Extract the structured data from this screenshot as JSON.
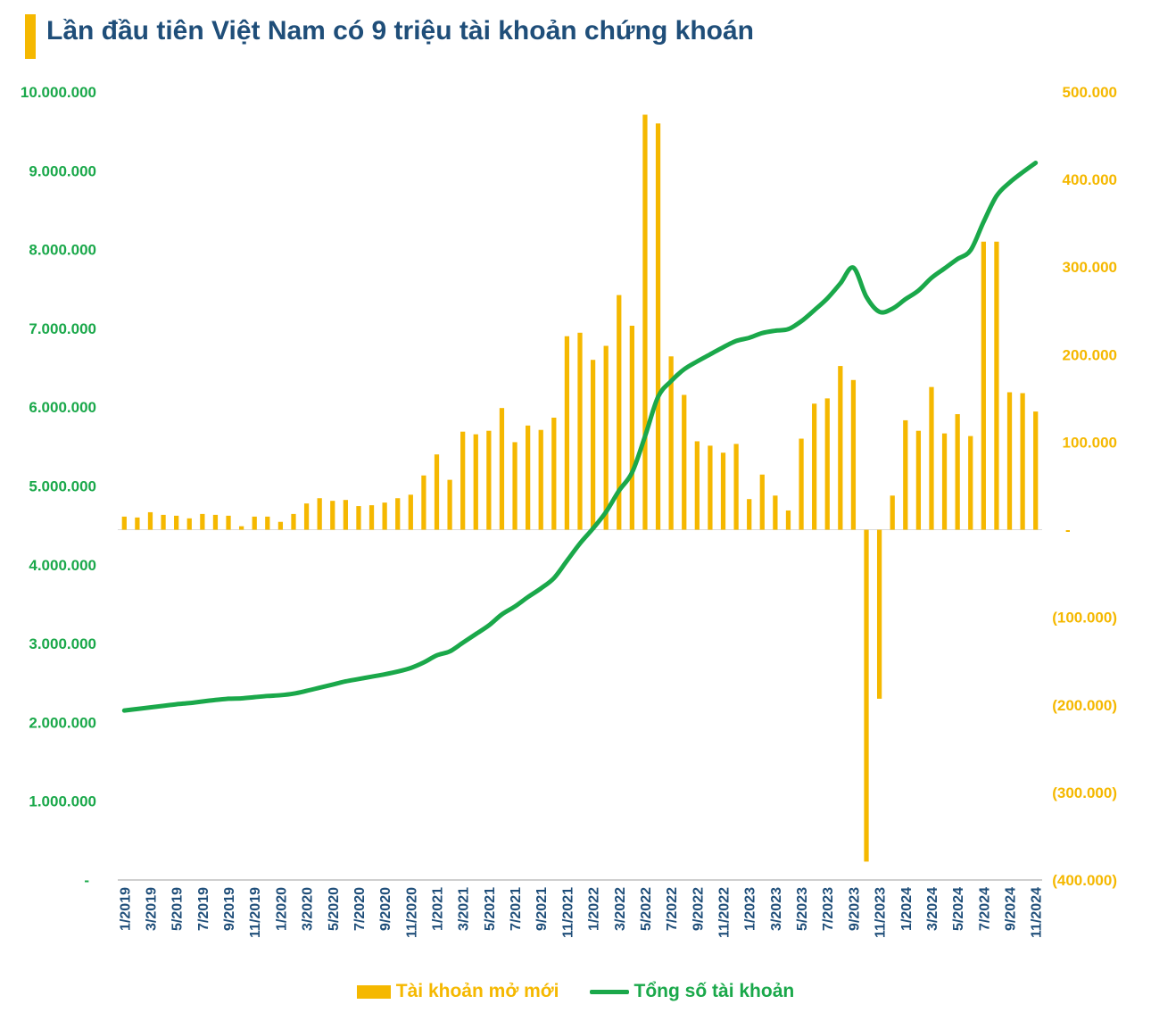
{
  "page": {
    "title": "Lần đầu tiên Việt Nam có 9 triệu tài khoản chứng khoán"
  },
  "legend": {
    "bar_label": "Tài khoản mở mới",
    "line_label": "Tổng số tài khoản"
  },
  "colors": {
    "bar": "#f5b800",
    "line": "#1aa84a",
    "title": "#1f4e79",
    "accent": "#f5b800"
  },
  "chart_data": {
    "type": "bar+line",
    "title": "Lần đầu tiên Việt Nam có 9 triệu tài khoản chứng khoán",
    "x": [
      "1/2019",
      "2/2019",
      "3/2019",
      "4/2019",
      "5/2019",
      "6/2019",
      "7/2019",
      "8/2019",
      "9/2019",
      "10/2019",
      "11/2019",
      "12/2019",
      "1/2020",
      "2/2020",
      "3/2020",
      "4/2020",
      "5/2020",
      "6/2020",
      "7/2020",
      "8/2020",
      "9/2020",
      "10/2020",
      "11/2020",
      "12/2020",
      "1/2021",
      "2/2021",
      "3/2021",
      "4/2021",
      "5/2021",
      "6/2021",
      "7/2021",
      "8/2021",
      "9/2021",
      "10/2021",
      "11/2021",
      "12/2021",
      "1/2022",
      "2/2022",
      "3/2022",
      "4/2022",
      "5/2022",
      "6/2022",
      "7/2022",
      "8/2022",
      "9/2022",
      "10/2022",
      "11/2022",
      "12/2022",
      "1/2023",
      "2/2023",
      "3/2023",
      "4/2023",
      "5/2023",
      "6/2023",
      "7/2023",
      "8/2023",
      "9/2023",
      "10/2023",
      "11/2023",
      "12/2023",
      "1/2024",
      "2/2024",
      "3/2024",
      "4/2024",
      "5/2024",
      "6/2024",
      "7/2024",
      "8/2024",
      "9/2024",
      "10/2024",
      "11/2024"
    ],
    "x_tick_labels": [
      "1/2019",
      "3/2019",
      "5/2019",
      "7/2019",
      "9/2019",
      "11/2019",
      "1/2020",
      "3/2020",
      "5/2020",
      "7/2020",
      "9/2020",
      "11/2020",
      "1/2021",
      "3/2021",
      "5/2021",
      "7/2021",
      "9/2021",
      "11/2021",
      "1/2022",
      "3/2022",
      "5/2022",
      "7/2022",
      "9/2022",
      "11/2022",
      "1/2023",
      "3/2023",
      "5/2023",
      "7/2023",
      "9/2023",
      "11/2023",
      "1/2024",
      "3/2024",
      "5/2024",
      "7/2024",
      "9/2024",
      "11/2024"
    ],
    "left_axis": {
      "ylim": [
        0,
        10000000
      ],
      "ticks": [
        0,
        1000000,
        2000000,
        3000000,
        4000000,
        5000000,
        6000000,
        7000000,
        8000000,
        9000000,
        10000000
      ],
      "tick_labels": [
        "-",
        "1.000.000",
        "2.000.000",
        "3.000.000",
        "4.000.000",
        "5.000.000",
        "6.000.000",
        "7.000.000",
        "8.000.000",
        "9.000.000",
        "10.000.000"
      ]
    },
    "right_axis": {
      "ylim": [
        -400000,
        500000
      ],
      "ticks": [
        -400000,
        -300000,
        -200000,
        -100000,
        0,
        100000,
        200000,
        300000,
        400000,
        500000
      ],
      "tick_labels": [
        "(400.000)",
        "(300.000)",
        "(200.000)",
        "(100.000)",
        "-",
        "100.000",
        "200.000",
        "300.000",
        "400.000",
        "500.000"
      ]
    },
    "series": [
      {
        "name": "Tài khoản mở mới",
        "type": "bar",
        "axis": "right",
        "values": [
          15000,
          14000,
          20000,
          17000,
          16000,
          13000,
          18000,
          17000,
          16000,
          4000,
          15000,
          15000,
          9000,
          18000,
          30000,
          36000,
          33000,
          34000,
          27000,
          28000,
          31000,
          36000,
          40000,
          62000,
          86000,
          57000,
          112000,
          109000,
          113000,
          139000,
          100000,
          119000,
          114000,
          128000,
          221000,
          225000,
          194000,
          210000,
          268000,
          233000,
          474000,
          464000,
          198000,
          154000,
          101000,
          96000,
          88000,
          98000,
          35000,
          63000,
          39000,
          22000,
          104000,
          144000,
          150000,
          187000,
          171000,
          -379000,
          -193000,
          39000,
          125000,
          113000,
          163000,
          110000,
          132000,
          107000,
          329000,
          329000,
          157000,
          156000,
          135000
        ]
      },
      {
        "name": "Tổng số tài khoản",
        "type": "line",
        "axis": "left",
        "values": [
          2150000,
          2170000,
          2190000,
          2210000,
          2230000,
          2245000,
          2265000,
          2285000,
          2300000,
          2305000,
          2320000,
          2335000,
          2345000,
          2365000,
          2400000,
          2440000,
          2480000,
          2520000,
          2550000,
          2580000,
          2610000,
          2645000,
          2690000,
          2760000,
          2850000,
          2900000,
          3010000,
          3120000,
          3230000,
          3370000,
          3470000,
          3590000,
          3700000,
          3830000,
          4050000,
          4270000,
          4460000,
          4670000,
          4940000,
          5170000,
          5630000,
          6130000,
          6330000,
          6480000,
          6580000,
          6670000,
          6760000,
          6840000,
          6880000,
          6940000,
          6970000,
          6990000,
          7090000,
          7230000,
          7380000,
          7570000,
          7770000,
          7400000,
          7210000,
          7250000,
          7370000,
          7480000,
          7640000,
          7760000,
          7880000,
          7990000,
          8350000,
          8680000,
          8850000,
          8980000,
          9100000
        ]
      }
    ],
    "grid": false,
    "legend_position": "bottom-center"
  }
}
